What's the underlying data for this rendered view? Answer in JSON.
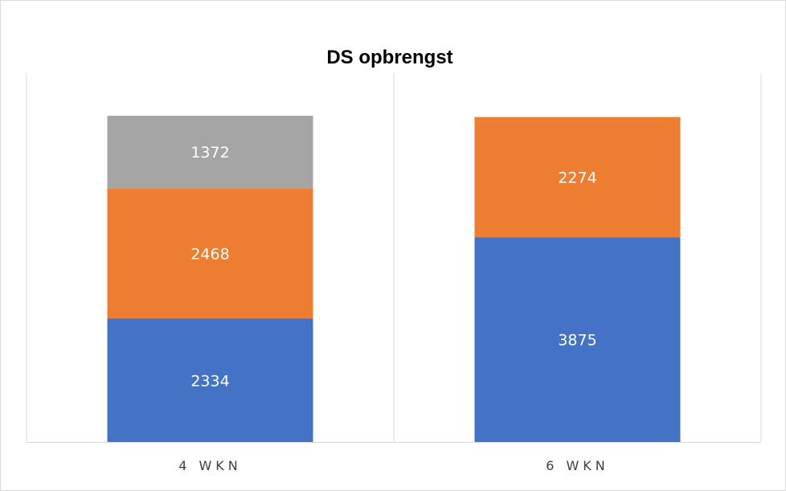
{
  "chart_data": {
    "type": "bar",
    "stacked": true,
    "title": "DS opbrengst",
    "categories": [
      "4 WKN",
      "6 WKN"
    ],
    "series": [
      {
        "color": "#4472C4",
        "values": [
          2334,
          3875
        ]
      },
      {
        "color": "#ED7D31",
        "values": [
          2468,
          2274
        ]
      },
      {
        "color": "#A5A5A5",
        "values": [
          1372,
          null
        ]
      }
    ],
    "ylim": [
      0,
      7200
    ],
    "grid": false,
    "category_dividers": true
  }
}
